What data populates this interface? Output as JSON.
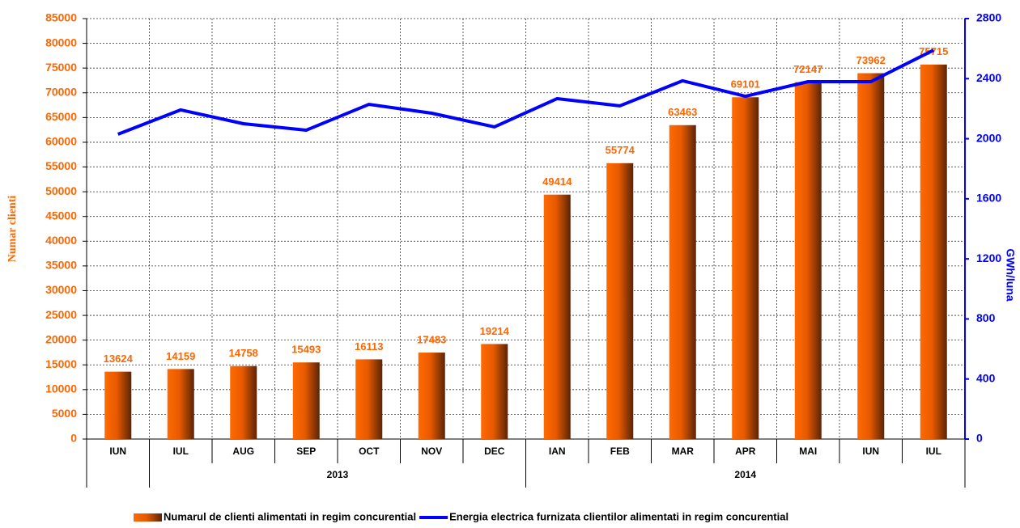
{
  "chart_data": {
    "type": "bar-line",
    "categories": [
      "IUN",
      "IUL",
      "AUG",
      "SEP",
      "OCT",
      "NOV",
      "DEC",
      "IAN",
      "FEB",
      "MAR",
      "APR",
      "MAI",
      "IUN",
      "IUL"
    ],
    "category_groups": [
      null,
      "2013",
      "2013",
      "2013",
      "2013",
      "2013",
      "2013",
      "2014",
      "2014",
      "2014",
      "2014",
      "2014",
      "2014",
      "2014"
    ],
    "ylabel": "Numar clienti",
    "y2label": "GWh/luna",
    "ylim": [
      0,
      85000
    ],
    "yticks": [
      0,
      5000,
      10000,
      15000,
      20000,
      25000,
      30000,
      35000,
      40000,
      45000,
      50000,
      55000,
      60000,
      65000,
      70000,
      75000,
      80000,
      85000
    ],
    "y2lim": [
      0,
      2800
    ],
    "y2ticks": [
      0,
      400,
      800,
      1200,
      1600,
      2000,
      2400,
      2800
    ],
    "grid": true,
    "legend": "bottom",
    "series": [
      {
        "name": "Numarul de clienti alimentati in regim concurential",
        "type": "bar",
        "color": "#ff6600",
        "values": [
          13624,
          14159,
          14758,
          15493,
          16113,
          17483,
          19214,
          49414,
          55774,
          63463,
          69101,
          72147,
          73962,
          75715
        ]
      },
      {
        "name": "Energia electrica furnizata clientilor alimentati in regim concurential",
        "type": "line",
        "color": "#0000ff",
        "axis": "y2",
        "values": [
          2030,
          2192,
          2100,
          2057,
          2229,
          2170,
          2079,
          2267,
          2219,
          2386,
          2283,
          2380,
          2380,
          2590
        ]
      }
    ]
  }
}
